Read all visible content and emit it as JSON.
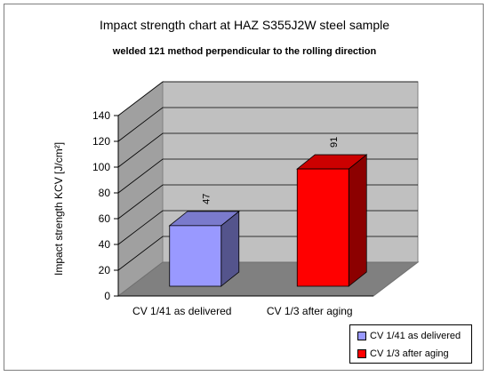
{
  "chart_data": {
    "type": "bar",
    "title": "Impact strength chart at HAZ S355J2W steel sample",
    "subtitle": "welded 121 method perpendicular to the rolling direction",
    "ylabel": "Impact strength KCV [J/cm²]",
    "xlabel": "",
    "categories": [
      "CV 1/41 as delivered",
      "CV 1/3 after aging"
    ],
    "values": [
      47,
      91
    ],
    "data_labels": [
      "47",
      "91"
    ],
    "yticks": [
      "0",
      "20",
      "40",
      "60",
      "80",
      "100",
      "120",
      "140"
    ],
    "ylim": [
      0,
      140
    ],
    "grid": true,
    "legend_position": "bottom-right",
    "colors": [
      "#9999ff",
      "#ff0000"
    ],
    "legend": [
      {
        "label": "CV 1/41 as delivered",
        "color": "#9999ff"
      },
      {
        "label": "CV 1/3 after aging",
        "color": "#ff0000"
      }
    ]
  }
}
